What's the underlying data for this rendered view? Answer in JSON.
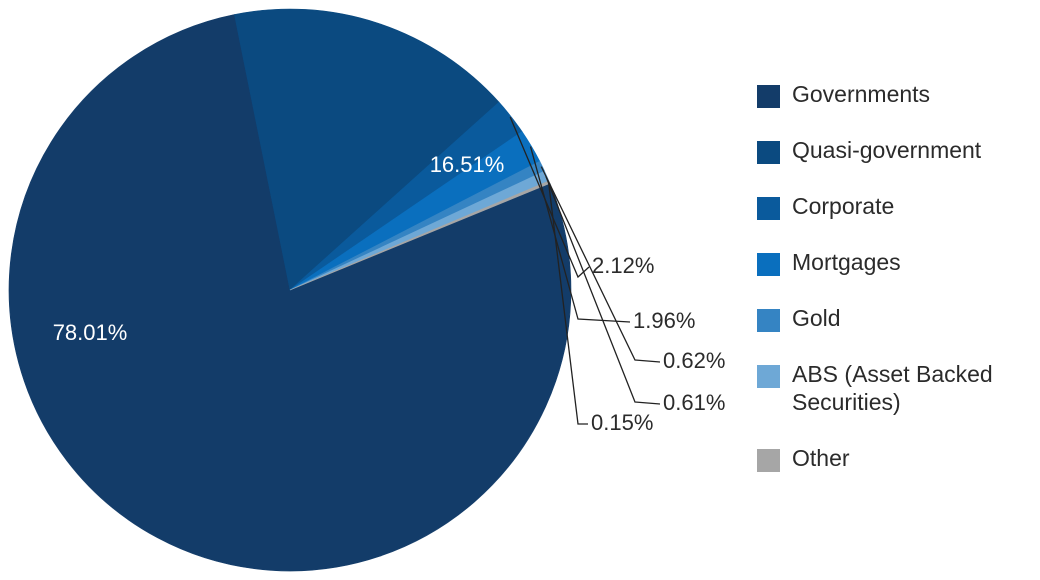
{
  "chart_data": {
    "type": "pie",
    "legend_position": "right",
    "slices": [
      {
        "name": "Governments",
        "value": 78.01,
        "label": "78.01%",
        "color": "#133c69"
      },
      {
        "name": "Quasi-government",
        "value": 16.51,
        "label": "16.51%",
        "color": "#0b4a80"
      },
      {
        "name": "Corporate",
        "value": 2.12,
        "label": "2.12%",
        "color": "#0a5a9c"
      },
      {
        "name": "Mortgages",
        "value": 1.96,
        "label": "1.96%",
        "color": "#0a6fbe"
      },
      {
        "name": "Gold",
        "value": 0.62,
        "label": "0.62%",
        "color": "#3584c3"
      },
      {
        "name": "ABS (Asset Backed Securities)",
        "value": 0.61,
        "label": "0.61%",
        "color": "#6ea8d6"
      },
      {
        "name": "Other",
        "value": 0.15,
        "label": "0.15%",
        "color": "#a6a6a6"
      }
    ],
    "legend": [
      {
        "lines": [
          "Governments"
        ]
      },
      {
        "lines": [
          "Quasi-government"
        ]
      },
      {
        "lines": [
          "Corporate"
        ]
      },
      {
        "lines": [
          "Mortgages"
        ]
      },
      {
        "lines": [
          "Gold"
        ]
      },
      {
        "lines": [
          "ABS (Asset Backed",
          "Securities)"
        ]
      },
      {
        "lines": [
          "Other"
        ]
      }
    ]
  }
}
